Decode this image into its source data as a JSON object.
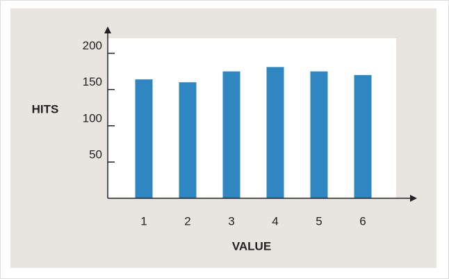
{
  "chart_data": {
    "type": "bar",
    "x_label": "VALUE",
    "y_label": "HITS",
    "categories": [
      "1",
      "2",
      "3",
      "4",
      "5",
      "6"
    ],
    "values": [
      164,
      160,
      175,
      181,
      175,
      170
    ],
    "color": "#2f86c0",
    "ylim": [
      0,
      237
    ],
    "yticks": [
      50,
      100,
      150,
      200
    ],
    "grid": false
  }
}
